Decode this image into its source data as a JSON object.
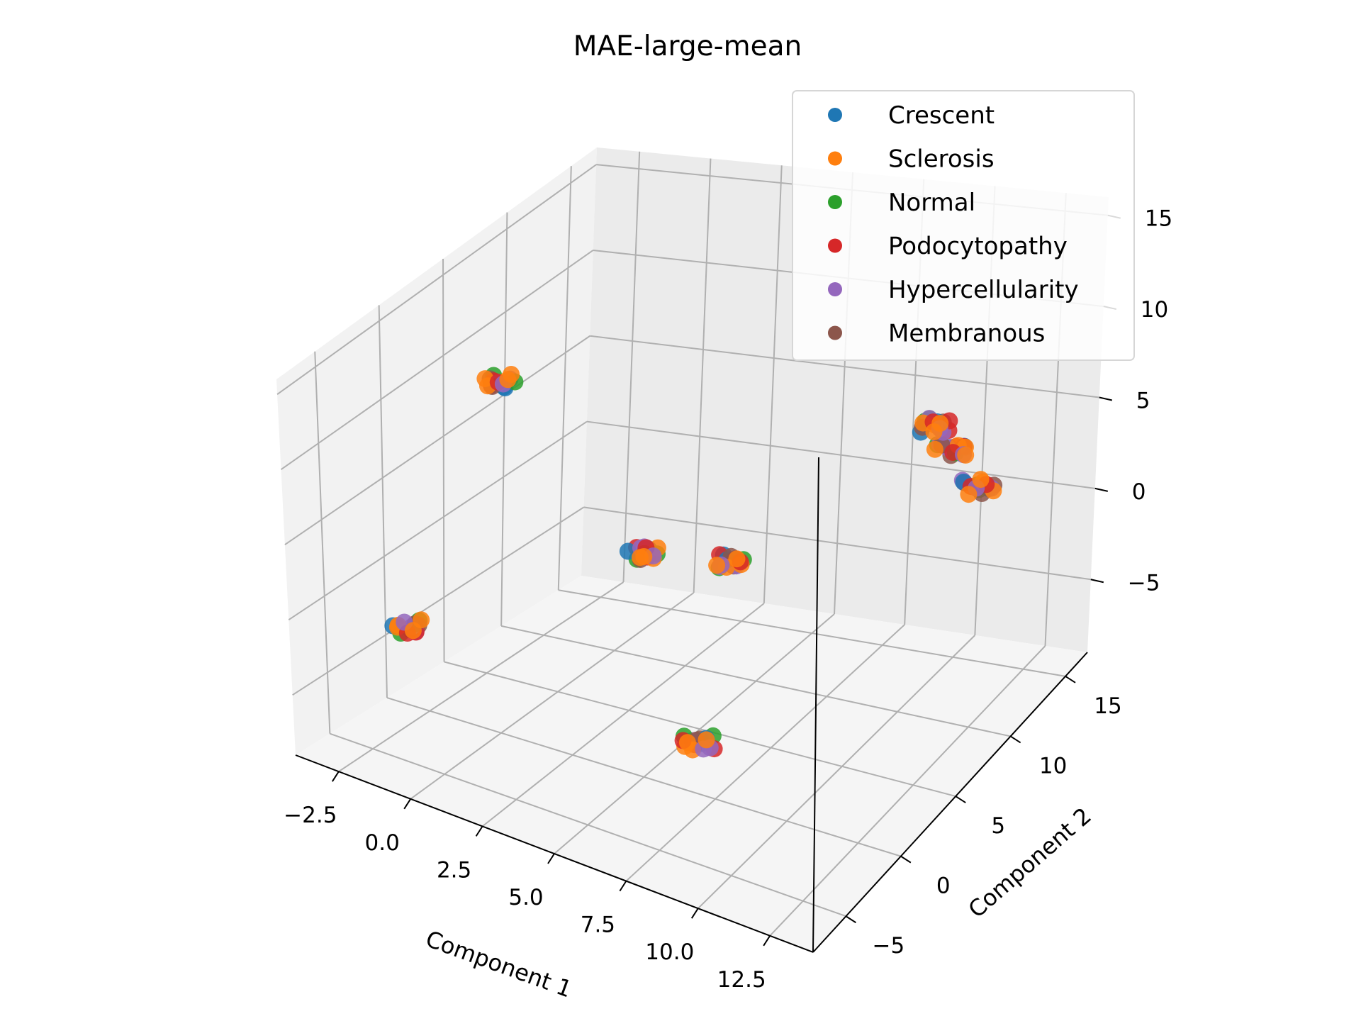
{
  "chart_data": {
    "type": "scatter",
    "title": "MAE-large-mean",
    "xlabel": "Component 1",
    "ylabel": "Component 2",
    "zlabel": "",
    "xlim": [
      -4,
      14
    ],
    "ylim": [
      -8,
      17
    ],
    "zlim": [
      -9,
      16
    ],
    "xticks": [
      "−2.5",
      "0.0",
      "2.5",
      "5.0",
      "7.5",
      "10.0",
      "12.5"
    ],
    "xtick_values": [
      -2.5,
      0,
      2.5,
      5,
      7.5,
      10,
      12.5
    ],
    "yticks": [
      "−5",
      "0",
      "5",
      "10",
      "15"
    ],
    "ytick_values": [
      -5,
      0,
      5,
      10,
      15
    ],
    "zticks": [
      "−5",
      "0",
      "5",
      "10",
      "15"
    ],
    "ztick_values": [
      -5,
      0,
      5,
      10,
      15
    ],
    "grid": true,
    "legend_position": "top-right",
    "series": [
      {
        "name": "Crescent",
        "color": "#1f77b4"
      },
      {
        "name": "Sclerosis",
        "color": "#ff7f0e"
      },
      {
        "name": "Normal",
        "color": "#2ca02c"
      },
      {
        "name": "Podocytopathy",
        "color": "#d62728"
      },
      {
        "name": "Hypercellularity",
        "color": "#9467bd"
      },
      {
        "name": "Membranous",
        "color": "#8c564b"
      }
    ],
    "clusters": [
      {
        "x": 0.5,
        "y": -1.0,
        "z": 13.0
      },
      {
        "x": -2.0,
        "y": -3.0,
        "z": -2.0
      },
      {
        "x": 4.5,
        "y": 1.0,
        "z": 3.0
      },
      {
        "x": 7.5,
        "y": -1.5,
        "z": -5.0
      },
      {
        "x": 4.0,
        "y": 10.0,
        "z": -2.5
      },
      {
        "x": 10.0,
        "y": 14.0,
        "z": 3.0
      },
      {
        "x": 11.0,
        "y": 10.0,
        "z": 7.0
      },
      {
        "x": 12.0,
        "y": 11.5,
        "z": 3.0
      }
    ]
  }
}
